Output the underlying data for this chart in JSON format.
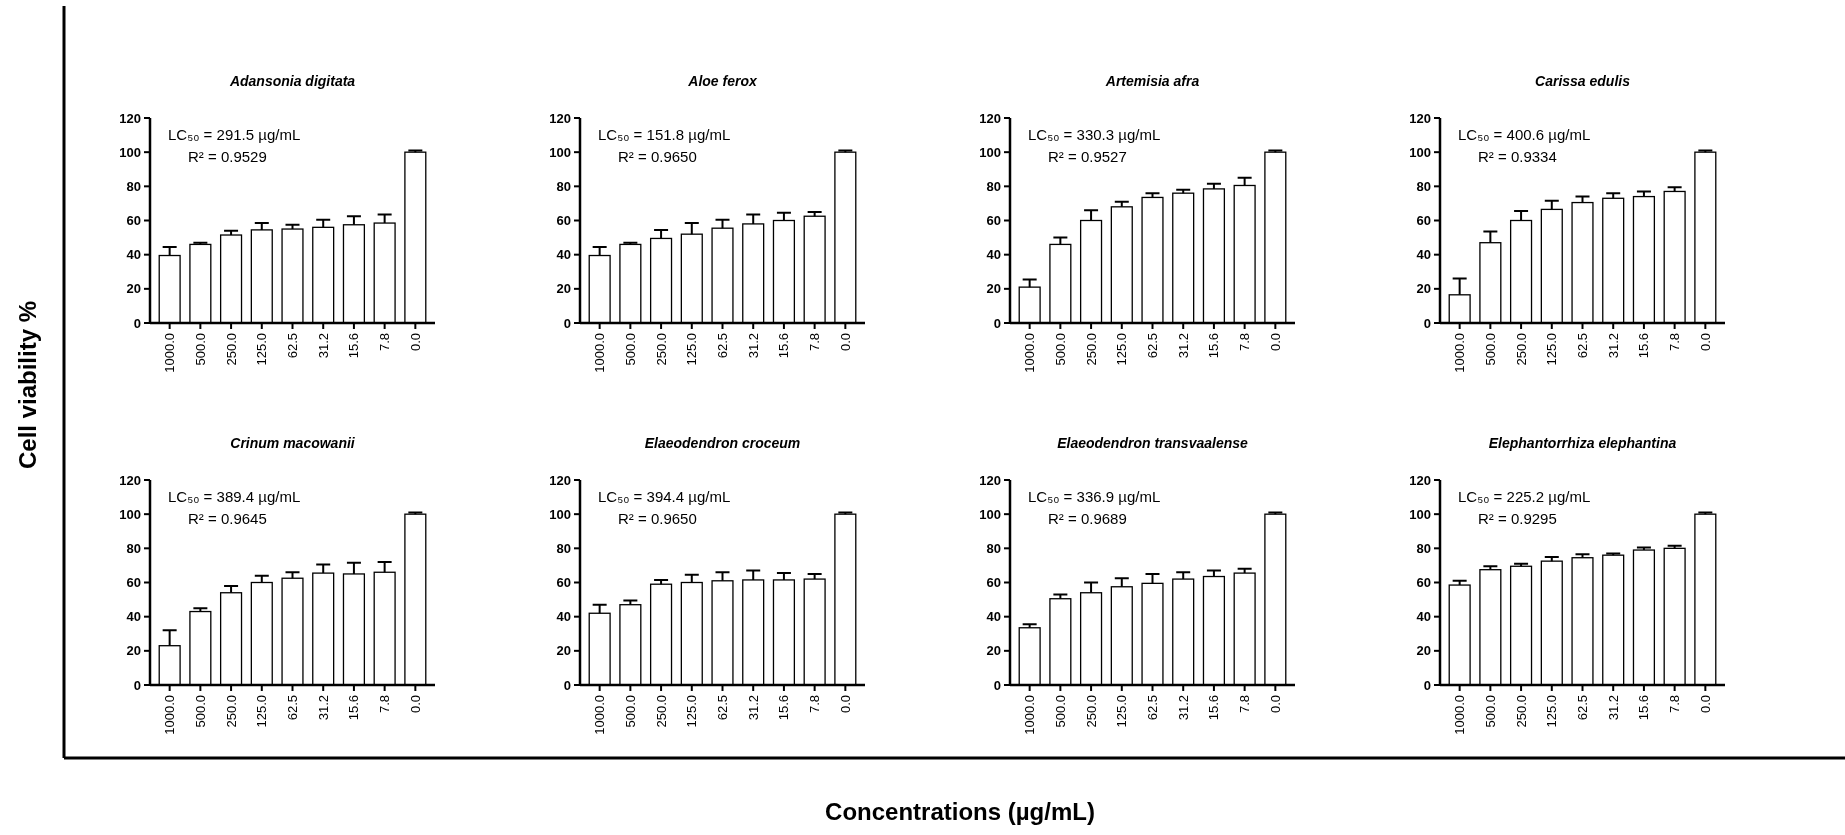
{
  "chart_data": [
    {
      "type": "bar",
      "title": "Adansonia digitata",
      "categories": [
        "1000.0",
        "500.0",
        "250.0",
        "125.0",
        "62.5",
        "31.2",
        "15.6",
        "7.8",
        "0.0"
      ],
      "values": [
        39.5,
        46,
        51.5,
        54.5,
        55,
        56,
        57.5,
        58.5,
        100
      ],
      "errors": [
        [
          39.5,
          44.5
        ],
        [
          46,
          47
        ],
        [
          51.5,
          54
        ],
        [
          54.5,
          58.5
        ],
        [
          55,
          57.5
        ],
        [
          56,
          60.5
        ],
        [
          57.5,
          62.5
        ],
        [
          58.5,
          63.5
        ],
        [
          100,
          101
        ]
      ],
      "color": "#ffffff",
      "ylim": [
        0,
        120
      ],
      "yticks": [
        0,
        20,
        40,
        60,
        80,
        100,
        120
      ],
      "annotations": [
        "LC₅₀ = 291.5 µg/mL",
        "R² = 0.9529"
      ]
    },
    {
      "type": "bar",
      "title": "Aloe ferox",
      "categories": [
        "1000.0",
        "500.0",
        "250.0",
        "125.0",
        "62.5",
        "31.2",
        "15.6",
        "7.8",
        "0.0"
      ],
      "values": [
        39.5,
        46,
        49.5,
        52,
        55.5,
        58,
        60,
        62.5,
        100
      ],
      "errors": [
        [
          39.5,
          44.5
        ],
        [
          46,
          47
        ],
        [
          49.5,
          54.5
        ],
        [
          52,
          58.5
        ],
        [
          55.5,
          60.5
        ],
        [
          58,
          63.5
        ],
        [
          60,
          64.5
        ],
        [
          62.5,
          65
        ],
        [
          100,
          101
        ]
      ],
      "color": "#ffffff",
      "ylim": [
        0,
        120
      ],
      "yticks": [
        0,
        20,
        40,
        60,
        80,
        100,
        120
      ],
      "annotations": [
        "LC₅₀ = 151.8 µg/mL",
        "R² = 0.9650"
      ]
    },
    {
      "type": "bar",
      "title": "Artemisia afra",
      "categories": [
        "1000.0",
        "500.0",
        "250.0",
        "125.0",
        "62.5",
        "31.2",
        "15.6",
        "7.8",
        "0.0"
      ],
      "values": [
        21,
        46,
        60,
        68,
        73.5,
        76,
        78.5,
        80.5,
        100
      ],
      "errors": [
        [
          21,
          25.5
        ],
        [
          46,
          50
        ],
        [
          60,
          66
        ],
        [
          68,
          71
        ],
        [
          73.5,
          76
        ],
        [
          76,
          78
        ],
        [
          78.5,
          81.5
        ],
        [
          80.5,
          85
        ],
        [
          100,
          101
        ]
      ],
      "color": "#ffffff",
      "ylim": [
        0,
        120
      ],
      "yticks": [
        0,
        20,
        40,
        60,
        80,
        100,
        120
      ],
      "annotations": [
        "LC₅₀ = 330.3 µg/mL",
        "R² = 0.9527"
      ]
    },
    {
      "type": "bar",
      "title": "Carissa edulis",
      "categories": [
        "1000.0",
        "500.0",
        "250.0",
        "125.0",
        "62.5",
        "31.2",
        "15.6",
        "7.8",
        "0.0"
      ],
      "values": [
        16.5,
        47,
        60,
        66.5,
        70.5,
        73,
        74,
        77,
        100
      ],
      "errors": [
        [
          16.5,
          26
        ],
        [
          47,
          53.5
        ],
        [
          60,
          65.5
        ],
        [
          66.5,
          71.5
        ],
        [
          70.5,
          74
        ],
        [
          73,
          76
        ],
        [
          74,
          77
        ],
        [
          77,
          79.5
        ],
        [
          100,
          101
        ]
      ],
      "color": "#ffffff",
      "ylim": [
        0,
        120
      ],
      "yticks": [
        0,
        20,
        40,
        60,
        80,
        100,
        120
      ],
      "annotations": [
        "LC₅₀ = 400.6 µg/mL",
        "R² = 0.9334"
      ]
    },
    {
      "type": "bar",
      "title": "Crinum macowanii",
      "categories": [
        "1000.0",
        "500.0",
        "250.0",
        "125.0",
        "62.5",
        "31.2",
        "15.6",
        "7.8",
        "0.0"
      ],
      "values": [
        23,
        43,
        54,
        60,
        62.5,
        65.5,
        65,
        66,
        100
      ],
      "errors": [
        [
          23,
          32
        ],
        [
          43,
          45
        ],
        [
          54,
          58
        ],
        [
          60,
          64
        ],
        [
          62.5,
          66
        ],
        [
          65.5,
          70.5
        ],
        [
          65,
          71.5
        ],
        [
          66,
          72
        ],
        [
          100,
          101
        ]
      ],
      "color": "#ffffff",
      "ylim": [
        0,
        120
      ],
      "yticks": [
        0,
        20,
        40,
        60,
        80,
        100,
        120
      ],
      "annotations": [
        "LC₅₀ = 389.4 µg/mL",
        "R² = 0.9645"
      ]
    },
    {
      "type": "bar",
      "title": "Elaeodendron croceum",
      "categories": [
        "1000.0",
        "500.0",
        "250.0",
        "125.0",
        "62.5",
        "31.2",
        "15.6",
        "7.8",
        "0.0"
      ],
      "values": [
        42,
        47,
        59,
        60,
        61,
        61.5,
        61.5,
        62,
        100
      ],
      "errors": [
        [
          42,
          47
        ],
        [
          47,
          49.5
        ],
        [
          59,
          61.5
        ],
        [
          60,
          64.5
        ],
        [
          61,
          66
        ],
        [
          61.5,
          67
        ],
        [
          61.5,
          65.5
        ],
        [
          62,
          65
        ],
        [
          100,
          101
        ]
      ],
      "color": "#ffffff",
      "ylim": [
        0,
        120
      ],
      "yticks": [
        0,
        20,
        40,
        60,
        80,
        100,
        120
      ],
      "annotations": [
        "LC₅₀ = 394.4 µg/mL",
        "R² = 0.9650"
      ]
    },
    {
      "type": "bar",
      "title": "Elaeodendron transvaalense",
      "categories": [
        "1000.0",
        "500.0",
        "250.0",
        "125.0",
        "62.5",
        "31.2",
        "15.6",
        "7.8",
        "0.0"
      ],
      "values": [
        33.5,
        50.5,
        54,
        57.5,
        59.5,
        62,
        63.5,
        65.5,
        100
      ],
      "errors": [
        [
          33.5,
          35.5
        ],
        [
          50.5,
          53
        ],
        [
          54,
          60
        ],
        [
          57.5,
          62.5
        ],
        [
          59.5,
          65
        ],
        [
          62,
          66
        ],
        [
          63.5,
          67
        ],
        [
          65.5,
          68
        ],
        [
          100,
          101
        ]
      ],
      "color": "#ffffff",
      "ylim": [
        0,
        120
      ],
      "yticks": [
        0,
        20,
        40,
        60,
        80,
        100,
        120
      ],
      "annotations": [
        "LC₅₀ = 336.9 µg/mL",
        "R² = 0.9689"
      ]
    },
    {
      "type": "bar",
      "title": "Elephantorrhiza elephantina",
      "categories": [
        "1000.0",
        "500.0",
        "250.0",
        "125.0",
        "62.5",
        "31.2",
        "15.6",
        "7.8",
        "0.0"
      ],
      "values": [
        58.5,
        67.5,
        69.5,
        72.5,
        74.5,
        76,
        79,
        80,
        100
      ],
      "errors": [
        [
          58.5,
          61
        ],
        [
          67.5,
          69.5
        ],
        [
          69.5,
          71
        ],
        [
          72.5,
          75
        ],
        [
          74.5,
          76.5
        ],
        [
          76,
          77
        ],
        [
          79,
          80.5
        ],
        [
          80,
          81.5
        ],
        [
          100,
          101
        ]
      ],
      "color": "#ffffff",
      "ylim": [
        0,
        120
      ],
      "yticks": [
        0,
        20,
        40,
        60,
        80,
        100,
        120
      ],
      "annotations": [
        "LC₅₀ = 225.2 µg/mL",
        "R² = 0.9295"
      ]
    },
    {
      "type": "other",
      "xlabel": "Concentrations (µg/mL)",
      "ylabel": "Cell viability %"
    }
  ]
}
